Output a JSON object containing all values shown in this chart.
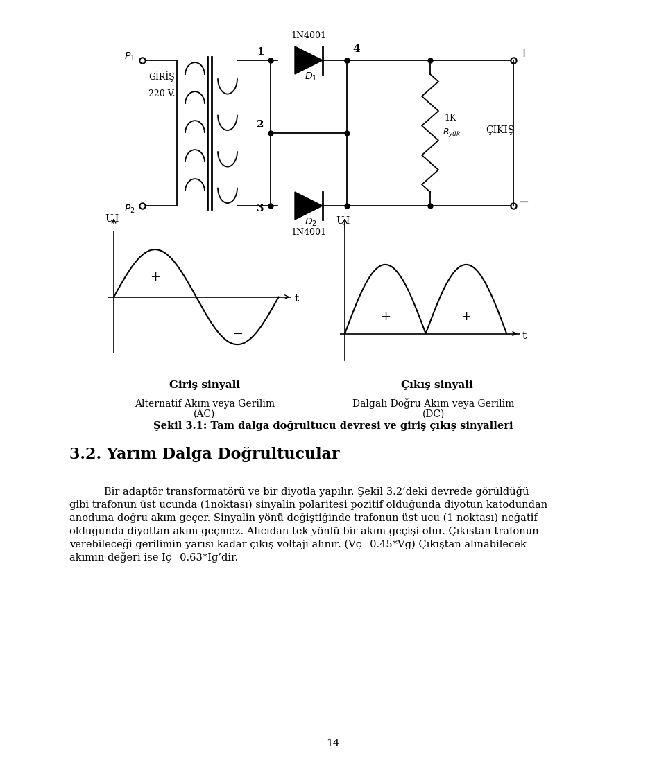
{
  "bg_color": "#ffffff",
  "page_number": "14",
  "section_title": "3.2. Yarım Dalga Doğrultucular",
  "figure_caption": "Şekil 3.1: Tam dalga doğrultucu devresi ve giriş çıkış sinyalleri",
  "signal_label_left": "Giriş sinyali",
  "signal_label_right": "Çıkış sinyali",
  "ac_label_line1": "Alternatif Akım veya Gerilim",
  "ac_label_line2": "(AC)",
  "dc_label_line1": "Dalgalı Doğru Akım veya Gerilim",
  "dc_label_line2": "(DC)",
  "paragraph_line1": "Bir adaptör transformatörü ve bir diyotla yapılır. Şekil 3.2’deki devrede görüldüğü",
  "paragraph_line2": "gibi trafonun üst ucunda (1noktası) sinyalin polaritesi pozitif olduğunda diyotun katodundan",
  "paragraph_line3": "anoduna doğru akım geçer. Sinyalin yönü değiştiğinde trafonun üst ucu (1 noktası) neğatif",
  "paragraph_line4": "olduğunda diyottan akım geçmez. Alıcıdan tek yönlü bir akım geçişi olur. Çıkıştan trafonun",
  "paragraph_line5": "verebileceği gerilimin yarısı kadar çıkış voltajı alınır. (Vç=0.45*Vg) Çıkıştan alınabilecek",
  "paragraph_line6": "akımın değeri ise Iç=0.63*Ig’dir."
}
